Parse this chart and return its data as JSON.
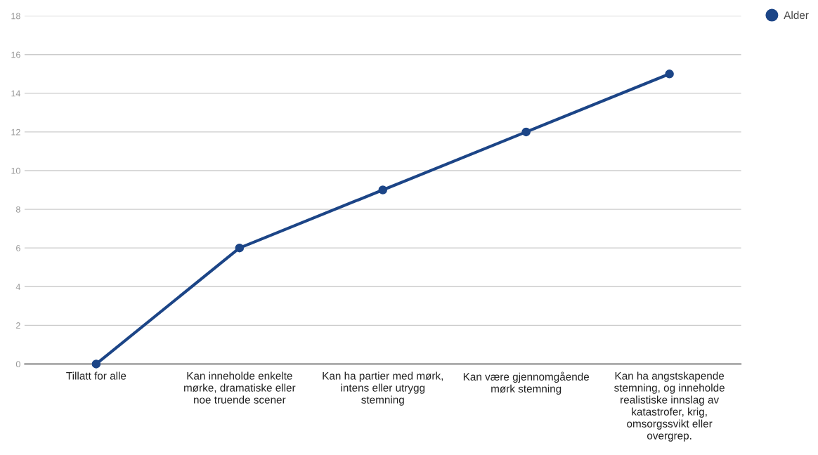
{
  "chart_data": {
    "type": "line",
    "categories": [
      "Tillatt for alle",
      "Kan inneholde enkelte\nmørke, dramatiske eller\nnoe truende scener",
      "Kan ha partier med mørk,\nintens eller utrygg\nstemning",
      "Kan være gjennomgående\nmørk stemning",
      "Kan ha angstskapende\nstemning, og inneholde\nrealistiske innslag av\nkatastrofer, krig,\nomsorgssvikt eller\novergrep."
    ],
    "series": [
      {
        "name": "Alder",
        "color": "#1c4587",
        "values": [
          0,
          6,
          9,
          12,
          15
        ]
      }
    ],
    "ylim": [
      0,
      18
    ],
    "yticks": [
      0,
      2,
      4,
      6,
      8,
      10,
      12,
      14,
      16,
      18
    ],
    "grid": "y",
    "legend": "top right",
    "marker": "circle",
    "line_style": "solid"
  }
}
